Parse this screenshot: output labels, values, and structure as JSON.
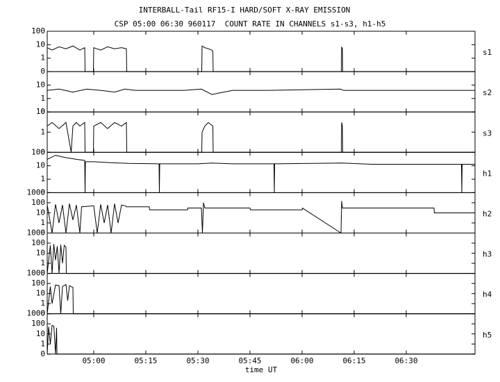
{
  "header": {
    "title": "INTERBALL-Tail RF15-I HARD/SOFT X-RAY EMISSION",
    "subtitle": "CSP 05:00 06:30 960117  COUNT RATE IN CHANNELS s1-s3, h1-h5"
  },
  "x_axis": {
    "label": "time UT",
    "xlim": [
      286.6,
      409.8
    ],
    "xticks": [
      {
        "value": 300,
        "label": "05:00"
      },
      {
        "value": 315,
        "label": "05:15"
      },
      {
        "value": 330,
        "label": "05:30"
      },
      {
        "value": 345,
        "label": "05:45"
      },
      {
        "value": 360,
        "label": "06:00"
      },
      {
        "value": 375,
        "label": "06:15"
      },
      {
        "value": 390,
        "label": "06:30"
      }
    ]
  },
  "chart_data": [
    {
      "type": "line",
      "log_scale": true,
      "ylim": [
        0,
        100
      ],
      "yticks": [
        0,
        1,
        10,
        100
      ],
      "series": [
        {
          "name": "s1",
          "color": "#000000",
          "x": [
            286.6,
            288,
            290,
            292,
            294,
            296,
            297.4,
            297.5,
            299.9,
            300,
            302,
            304,
            306,
            308,
            309.4,
            309.5,
            331.1,
            331.2,
            332,
            333,
            334,
            334.3,
            334.4,
            371.3,
            371.4,
            371.6,
            371.7,
            409.8
          ],
          "values": [
            6,
            4,
            7,
            5,
            8,
            4,
            6,
            0,
            0,
            6,
            4,
            7,
            5,
            6,
            5,
            0,
            0,
            8,
            6,
            5,
            4,
            3,
            0,
            0,
            7,
            5,
            0,
            0
          ]
        }
      ]
    },
    {
      "type": "line",
      "log_scale": true,
      "ylim": [
        0,
        100
      ],
      "yticks": [
        0,
        1,
        10
      ],
      "series": [
        {
          "name": "s2",
          "color": "#000000",
          "x": [
            286.6,
            290,
            294,
            298,
            302,
            306,
            309,
            312,
            325,
            326,
            331,
            334,
            340,
            350,
            371,
            372,
            380,
            395,
            409.8
          ],
          "values": [
            4,
            5,
            3,
            5,
            4,
            3,
            5,
            4,
            4,
            4,
            5,
            2,
            4,
            4,
            5,
            4,
            4,
            4,
            4
          ]
        }
      ]
    },
    {
      "type": "line",
      "log_scale": true,
      "ylim": [
        0,
        10
      ],
      "yticks": [
        0,
        1,
        10
      ],
      "series": [
        {
          "name": "s3",
          "color": "#000000",
          "x": [
            286.6,
            288,
            290,
            292,
            293.5,
            294,
            295,
            296,
            297.4,
            297.5,
            299.9,
            300,
            302,
            304,
            306,
            308,
            309.4,
            309.5,
            331.1,
            331.2,
            332,
            333,
            334.3,
            334.4,
            371.3,
            371.4,
            371.6,
            371.7,
            409.8
          ],
          "values": [
            2,
            3,
            1.5,
            3,
            0,
            2,
            3,
            2,
            3,
            0,
            0,
            2,
            3,
            1.5,
            3,
            2,
            3,
            0,
            0,
            1,
            2,
            3,
            2,
            0,
            0,
            3,
            2,
            0,
            0
          ]
        }
      ]
    },
    {
      "type": "line",
      "log_scale": true,
      "ylim": [
        0,
        100
      ],
      "yticks": [
        0,
        1,
        10,
        100
      ],
      "series": [
        {
          "name": "h1",
          "color": "#000000",
          "x": [
            286.6,
            289,
            292,
            295,
            297.4,
            297.5,
            297.6,
            300,
            305,
            310,
            318.8,
            318.9,
            319,
            330,
            334,
            340,
            351.9,
            352,
            352.1,
            371.5,
            380,
            405.9,
            406,
            406.1,
            409.8
          ],
          "values": [
            30,
            60,
            40,
            30,
            25,
            0,
            20,
            20,
            17,
            15,
            14,
            0,
            14,
            14,
            16,
            14,
            14,
            0,
            14,
            16,
            13,
            13,
            0,
            13,
            13
          ]
        }
      ]
    },
    {
      "type": "line",
      "log_scale": true,
      "ylim": [
        0,
        1000
      ],
      "yticks": [
        0,
        1,
        10,
        100,
        1000
      ],
      "series": [
        {
          "name": "h2",
          "color": "#000000",
          "x": [
            286.6,
            288,
            289,
            290,
            291,
            292,
            293,
            294,
            295,
            296,
            296.5,
            300,
            301,
            302,
            303,
            304,
            305,
            306,
            307,
            308,
            309,
            309.5,
            316,
            316.1,
            327,
            327.1,
            331,
            331.3,
            331.6,
            332,
            345,
            345.1,
            360,
            360.1,
            371.2,
            371.4,
            371.6,
            398,
            398.1,
            409.8
          ],
          "values": [
            60,
            0,
            70,
            1,
            60,
            0,
            80,
            2,
            60,
            0,
            40,
            50,
            0,
            70,
            1,
            60,
            0,
            80,
            1,
            60,
            50,
            40,
            40,
            20,
            20,
            30,
            30,
            0,
            100,
            30,
            30,
            20,
            20,
            30,
            0,
            150,
            30,
            30,
            10,
            10
          ]
        }
      ]
    },
    {
      "type": "line",
      "log_scale": true,
      "ylim": [
        0,
        1000
      ],
      "yticks": [
        0,
        1,
        10,
        100,
        1000
      ],
      "series": [
        {
          "name": "h3",
          "color": "#000000",
          "x": [
            286.6,
            287.5,
            288,
            288.5,
            289,
            289.5,
            290,
            290.5,
            291,
            291.5,
            292,
            292.1,
            409.8
          ],
          "values": [
            0,
            60,
            0,
            80,
            2,
            50,
            0,
            70,
            1,
            60,
            40,
            0,
            0
          ]
        }
      ]
    },
    {
      "type": "line",
      "log_scale": true,
      "ylim": [
        0,
        1000
      ],
      "yticks": [
        0,
        1,
        10,
        100,
        1000
      ],
      "series": [
        {
          "name": "h4",
          "color": "#000000",
          "x": [
            286.6,
            287.5,
            288,
            289,
            290,
            290.5,
            291,
            292,
            292.5,
            293,
            294,
            294.1,
            409.8
          ],
          "values": [
            0,
            50,
            1,
            70,
            60,
            0,
            50,
            80,
            2,
            60,
            40,
            0,
            0
          ]
        }
      ]
    },
    {
      "type": "line",
      "log_scale": true,
      "ylim": [
        0,
        1000
      ],
      "yticks": [
        0,
        1,
        10,
        100,
        1000
      ],
      "series": [
        {
          "name": "h5",
          "color": "#000000",
          "x": [
            286.6,
            287,
            287.5,
            288,
            288.5,
            289,
            289.3,
            289.4,
            409.8
          ],
          "values": [
            0,
            50,
            1,
            70,
            60,
            0,
            40,
            0,
            0
          ]
        }
      ]
    }
  ]
}
